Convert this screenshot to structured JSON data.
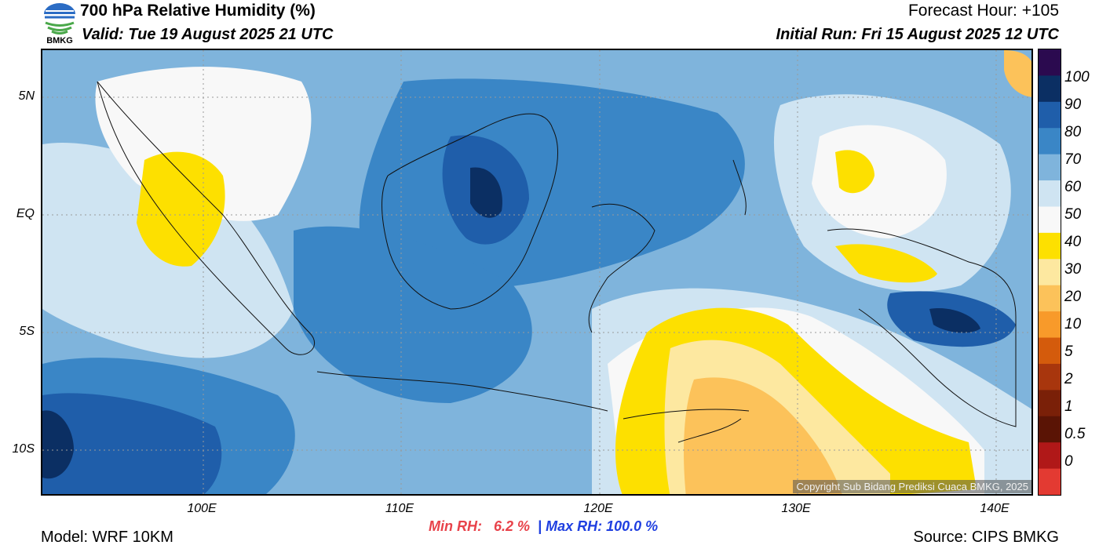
{
  "header": {
    "title": "700 hPa Relative Humidity (%)",
    "valid": "Valid: Tue 19 August 2025 21 UTC",
    "forecast_hour": "Forecast Hour: +105",
    "initial_run": "Initial Run: Fri 15 August 2025 12 UTC",
    "logo_text": "BMKG"
  },
  "axes": {
    "lat_labels": [
      "5N",
      "EQ",
      "5S",
      "10S"
    ],
    "lon_labels": [
      "100E",
      "110E",
      "120E",
      "130E",
      "140E"
    ]
  },
  "colorbar": {
    "labels": [
      "100",
      "90",
      "80",
      "70",
      "60",
      "50",
      "40",
      "30",
      "20",
      "10",
      "5",
      "2",
      "1",
      "0.5",
      "0"
    ],
    "colors": [
      "#2b0a4f",
      "#0b2f63",
      "#1f5eaa",
      "#3a86c6",
      "#7fb4dc",
      "#cfe4f2",
      "#f8f8f8",
      "#fde000",
      "#fde8a0",
      "#fcc25a",
      "#f89a2a",
      "#d45b0c",
      "#a8360d",
      "#7a2008",
      "#5a1405",
      "#b01818",
      "#e33a32"
    ]
  },
  "stats": {
    "min_rh_label": "Min RH:",
    "min_rh_value": "6.2 %",
    "separator": "|",
    "max_rh": "Max RH: 100.0 %"
  },
  "footer": {
    "model": "Model: WRF 10KM",
    "source": "Source: CIPS BMKG",
    "copyright": "Copyright Sub Bidang Prediksi Cuaca BMKG, 2025"
  }
}
